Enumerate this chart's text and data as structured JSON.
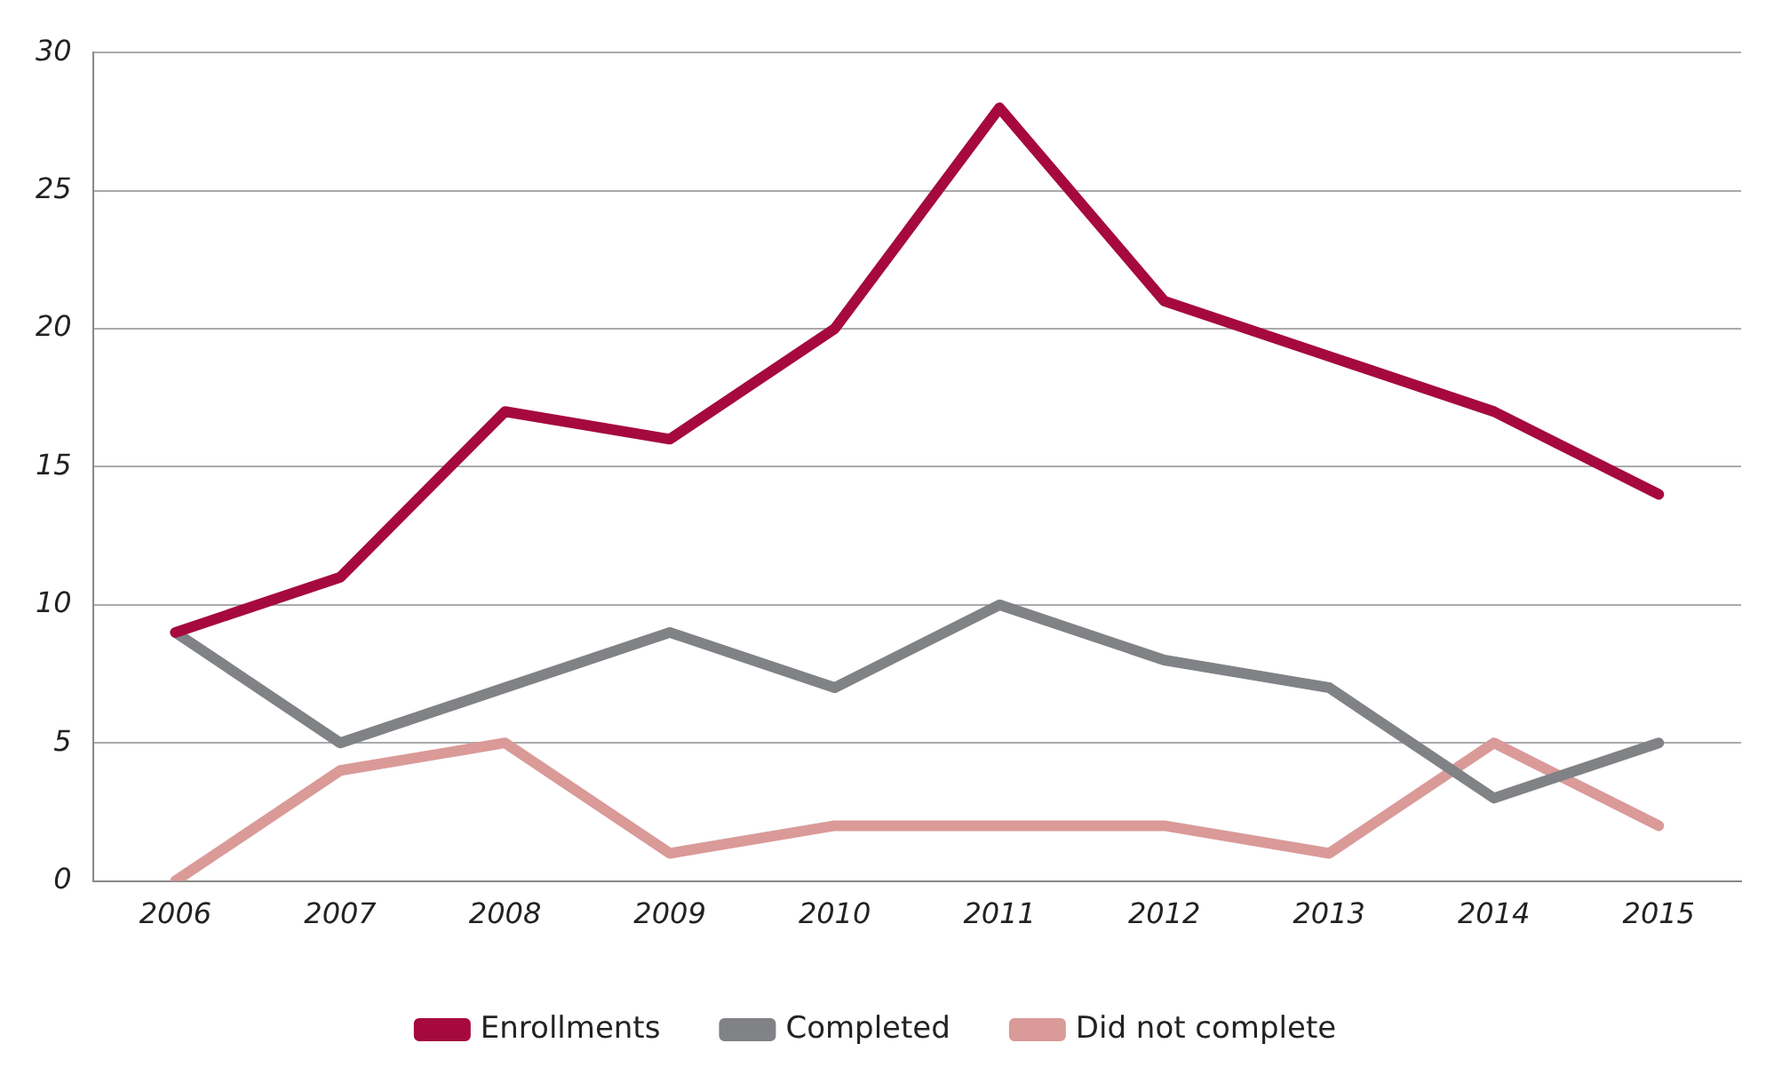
{
  "chart_data": {
    "type": "line",
    "categories": [
      "2006",
      "2007",
      "2008",
      "2009",
      "2010",
      "2011",
      "2012",
      "2013",
      "2014",
      "2015"
    ],
    "series": [
      {
        "name": "Enrollments",
        "color": "#a6093d",
        "values": [
          9,
          11,
          17,
          16,
          20,
          28,
          21,
          19,
          17,
          14
        ]
      },
      {
        "name": "Completed",
        "color": "#808285",
        "values": [
          9,
          5,
          7,
          9,
          7,
          10,
          8,
          7,
          3,
          5
        ]
      },
      {
        "name": "Did not complete",
        "color": "#d99a98",
        "values": [
          0,
          4,
          5,
          1,
          2,
          2,
          2,
          1,
          5,
          2
        ]
      }
    ],
    "ylim": [
      0,
      30
    ],
    "yticks": [
      0,
      5,
      10,
      15,
      20,
      25,
      30
    ],
    "grid": "y",
    "legend": "bottom",
    "marker": "none",
    "line_style": "solid"
  }
}
